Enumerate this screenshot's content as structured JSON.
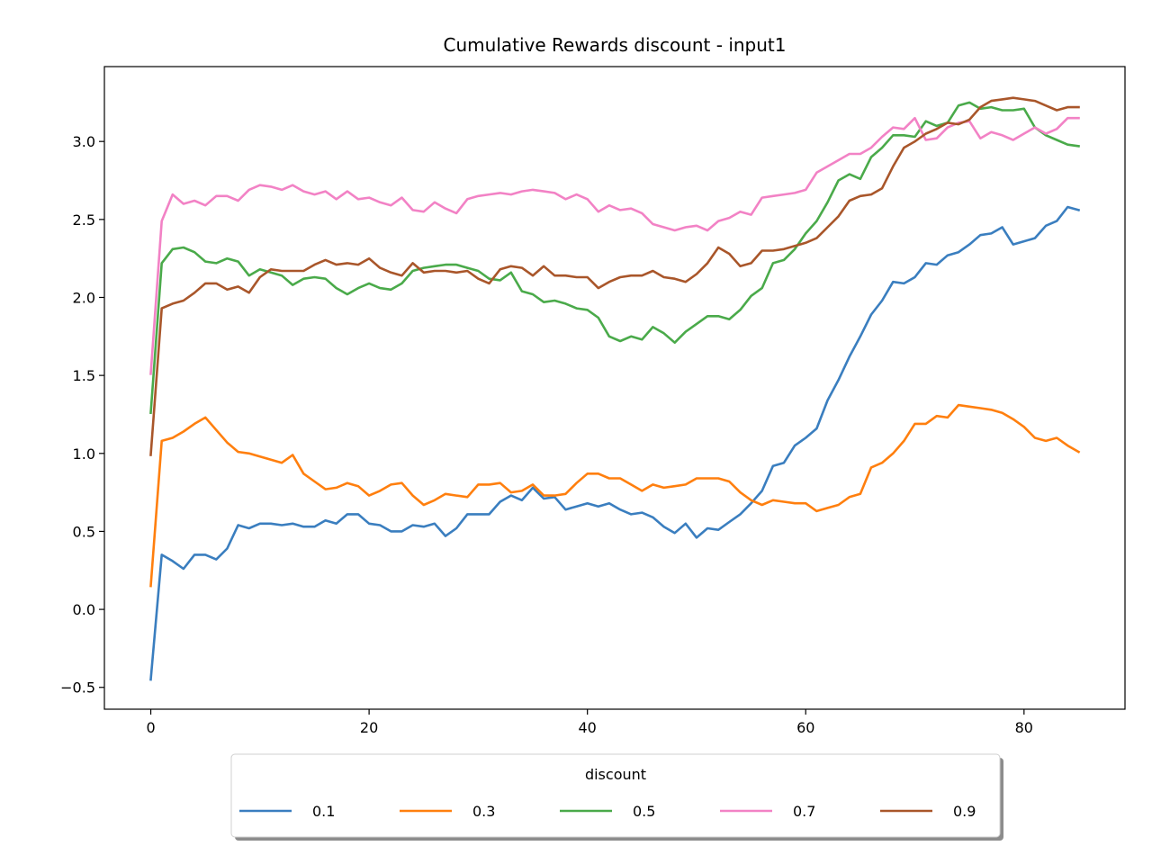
{
  "chart_data": {
    "type": "line",
    "title": "Cumulative Rewards discount - input1",
    "xlabel": "",
    "ylabel": "",
    "xlim": [
      -4.25,
      89.25
    ],
    "ylim": [
      -0.64,
      3.48
    ],
    "xticks": [
      0,
      20,
      40,
      60,
      80
    ],
    "yticks": [
      -0.5,
      0.0,
      0.5,
      1.0,
      1.5,
      2.0,
      2.5,
      3.0
    ],
    "ytick_labels": [
      "−0.5",
      "0.0",
      "0.5",
      "1.0",
      "1.5",
      "2.0",
      "2.5",
      "3.0"
    ],
    "grid": false,
    "legend": {
      "title": "discount",
      "placement": "bottom-center, outside plot",
      "ncol": 5
    },
    "x": [
      0,
      1,
      2,
      3,
      4,
      5,
      6,
      7,
      8,
      9,
      10,
      11,
      12,
      13,
      14,
      15,
      16,
      17,
      18,
      19,
      20,
      21,
      22,
      23,
      24,
      25,
      26,
      27,
      28,
      29,
      30,
      31,
      32,
      33,
      34,
      35,
      36,
      37,
      38,
      39,
      40,
      41,
      42,
      43,
      44,
      45,
      46,
      47,
      48,
      49,
      50,
      51,
      52,
      53,
      54,
      55,
      56,
      57,
      58,
      59,
      60,
      61,
      62,
      63,
      64,
      65,
      66,
      67,
      68,
      69,
      70,
      71,
      72,
      73,
      74,
      75,
      76,
      77,
      78,
      79,
      80,
      81,
      82,
      83,
      84,
      85
    ],
    "series": [
      {
        "name": "0.1",
        "color": "#3a7ebf",
        "values": [
          -0.45,
          0.35,
          0.31,
          0.26,
          0.35,
          0.35,
          0.32,
          0.39,
          0.54,
          0.52,
          0.55,
          0.55,
          0.54,
          0.55,
          0.53,
          0.53,
          0.57,
          0.55,
          0.61,
          0.61,
          0.55,
          0.54,
          0.5,
          0.5,
          0.54,
          0.53,
          0.55,
          0.47,
          0.52,
          0.61,
          0.61,
          0.61,
          0.69,
          0.73,
          0.7,
          0.78,
          0.71,
          0.72,
          0.64,
          0.66,
          0.68,
          0.66,
          0.68,
          0.64,
          0.61,
          0.62,
          0.59,
          0.53,
          0.49,
          0.55,
          0.46,
          0.52,
          0.51,
          0.56,
          0.61,
          0.68,
          0.76,
          0.92,
          0.94,
          1.05,
          1.1,
          1.16,
          1.34,
          1.47,
          1.62,
          1.75,
          1.89,
          1.98,
          2.1,
          2.09,
          2.13,
          2.22,
          2.21,
          2.27,
          2.29,
          2.34,
          2.4,
          2.41,
          2.45,
          2.34,
          2.36,
          2.38,
          2.46,
          2.49,
          2.58,
          2.56
        ]
      },
      {
        "name": "0.3",
        "color": "#ff7f0e",
        "values": [
          0.15,
          1.08,
          1.1,
          1.14,
          1.19,
          1.23,
          1.15,
          1.07,
          1.01,
          1.0,
          0.98,
          0.96,
          0.94,
          0.99,
          0.87,
          0.82,
          0.77,
          0.78,
          0.81,
          0.79,
          0.73,
          0.76,
          0.8,
          0.81,
          0.73,
          0.67,
          0.7,
          0.74,
          0.73,
          0.72,
          0.8,
          0.8,
          0.81,
          0.75,
          0.76,
          0.8,
          0.73,
          0.73,
          0.74,
          0.81,
          0.87,
          0.87,
          0.84,
          0.84,
          0.8,
          0.76,
          0.8,
          0.78,
          0.79,
          0.8,
          0.84,
          0.84,
          0.84,
          0.82,
          0.75,
          0.7,
          0.67,
          0.7,
          0.69,
          0.68,
          0.68,
          0.63,
          0.65,
          0.67,
          0.72,
          0.74,
          0.91,
          0.94,
          1.0,
          1.08,
          1.19,
          1.19,
          1.24,
          1.23,
          1.31,
          1.3,
          1.29,
          1.28,
          1.26,
          1.22,
          1.17,
          1.1,
          1.08,
          1.1,
          1.05,
          1.01
        ]
      },
      {
        "name": "0.5",
        "color": "#4aaa4a",
        "values": [
          1.26,
          2.22,
          2.31,
          2.32,
          2.29,
          2.23,
          2.22,
          2.25,
          2.23,
          2.14,
          2.18,
          2.16,
          2.14,
          2.08,
          2.12,
          2.13,
          2.12,
          2.06,
          2.02,
          2.06,
          2.09,
          2.06,
          2.05,
          2.09,
          2.17,
          2.19,
          2.2,
          2.21,
          2.21,
          2.19,
          2.17,
          2.12,
          2.11,
          2.16,
          2.04,
          2.02,
          1.97,
          1.98,
          1.96,
          1.93,
          1.92,
          1.87,
          1.75,
          1.72,
          1.75,
          1.73,
          1.81,
          1.77,
          1.71,
          1.78,
          1.83,
          1.88,
          1.88,
          1.86,
          1.92,
          2.01,
          2.06,
          2.22,
          2.24,
          2.31,
          2.41,
          2.49,
          2.61,
          2.75,
          2.79,
          2.76,
          2.9,
          2.96,
          3.04,
          3.04,
          3.03,
          3.13,
          3.1,
          3.12,
          3.23,
          3.25,
          3.21,
          3.22,
          3.2,
          3.2,
          3.21,
          3.09,
          3.04,
          3.01,
          2.98,
          2.97
        ]
      },
      {
        "name": "0.7",
        "color": "#f282c5",
        "values": [
          1.51,
          2.49,
          2.66,
          2.6,
          2.62,
          2.59,
          2.65,
          2.65,
          2.62,
          2.69,
          2.72,
          2.71,
          2.69,
          2.72,
          2.68,
          2.66,
          2.68,
          2.63,
          2.68,
          2.63,
          2.64,
          2.61,
          2.59,
          2.64,
          2.56,
          2.55,
          2.61,
          2.57,
          2.54,
          2.63,
          2.65,
          2.66,
          2.67,
          2.66,
          2.68,
          2.69,
          2.68,
          2.67,
          2.63,
          2.66,
          2.63,
          2.55,
          2.59,
          2.56,
          2.57,
          2.54,
          2.47,
          2.45,
          2.43,
          2.45,
          2.46,
          2.43,
          2.49,
          2.51,
          2.55,
          2.53,
          2.64,
          2.65,
          2.66,
          2.67,
          2.69,
          2.8,
          2.84,
          2.88,
          2.92,
          2.92,
          2.96,
          3.03,
          3.09,
          3.08,
          3.15,
          3.01,
          3.02,
          3.09,
          3.12,
          3.13,
          3.02,
          3.06,
          3.04,
          3.01,
          3.05,
          3.09,
          3.05,
          3.08,
          3.15,
          3.15
        ]
      },
      {
        "name": "0.9",
        "color": "#a9562a",
        "values": [
          0.99,
          1.93,
          1.96,
          1.98,
          2.03,
          2.09,
          2.09,
          2.05,
          2.07,
          2.03,
          2.13,
          2.18,
          2.17,
          2.17,
          2.17,
          2.21,
          2.24,
          2.21,
          2.22,
          2.21,
          2.25,
          2.19,
          2.16,
          2.14,
          2.22,
          2.16,
          2.17,
          2.17,
          2.16,
          2.17,
          2.12,
          2.09,
          2.18,
          2.2,
          2.19,
          2.14,
          2.2,
          2.14,
          2.14,
          2.13,
          2.13,
          2.06,
          2.1,
          2.13,
          2.14,
          2.14,
          2.17,
          2.13,
          2.12,
          2.1,
          2.15,
          2.22,
          2.32,
          2.28,
          2.2,
          2.22,
          2.3,
          2.3,
          2.31,
          2.33,
          2.35,
          2.38,
          2.45,
          2.52,
          2.62,
          2.65,
          2.66,
          2.7,
          2.84,
          2.96,
          3.0,
          3.05,
          3.08,
          3.12,
          3.11,
          3.14,
          3.22,
          3.26,
          3.27,
          3.28,
          3.27,
          3.26,
          3.23,
          3.2,
          3.22,
          3.22
        ]
      }
    ]
  }
}
